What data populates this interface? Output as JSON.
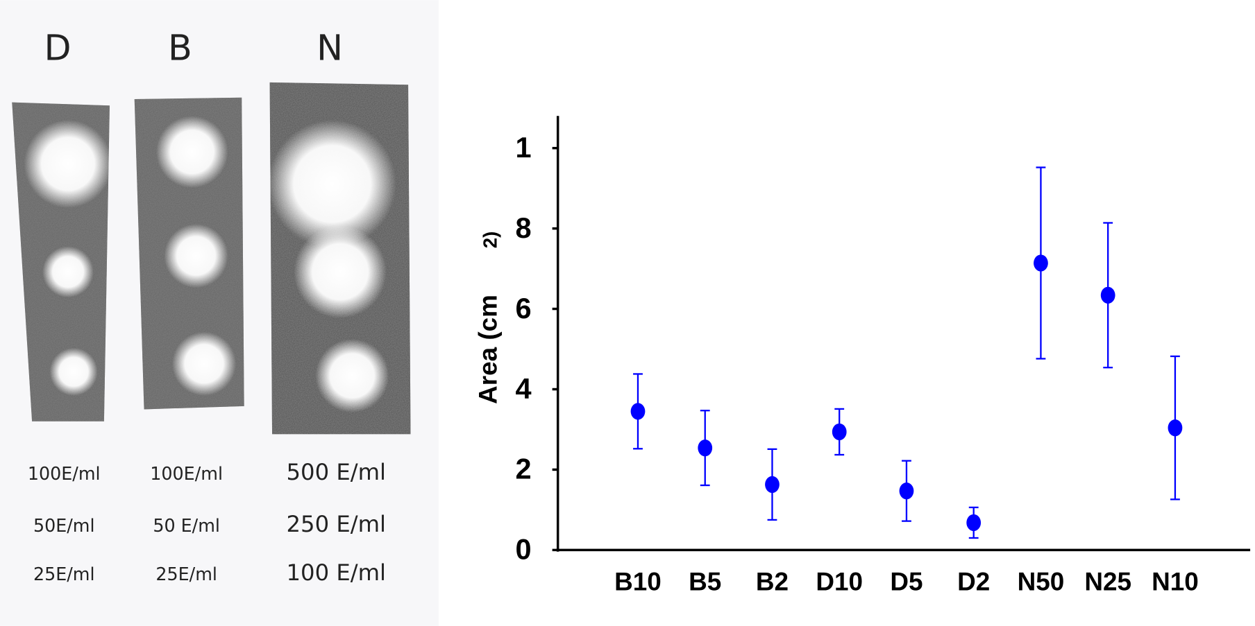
{
  "photo": {
    "columns": [
      {
        "title": "D",
        "labels": [
          "100E/ml",
          "50E/ml",
          "25E/ml"
        ]
      },
      {
        "title": "B",
        "labels": [
          "100E/ml",
          "50 E/ml",
          "25E/ml"
        ]
      },
      {
        "title": "N",
        "labels": [
          "500 E/ml",
          "250 E/ml",
          "100 E/ml"
        ]
      }
    ]
  },
  "chart_data": {
    "type": "scatter",
    "y_label": "Area (cm",
    "y_label_sup": "2)",
    "categories": [
      "B10",
      "B5",
      "B2",
      "D10",
      "D5",
      "D2",
      "N50",
      "N25",
      "N10"
    ],
    "values": [
      3.45,
      2.54,
      1.63,
      2.94,
      1.47,
      0.68,
      7.14,
      6.34,
      3.04
    ],
    "errors": [
      0.93,
      0.93,
      0.88,
      0.57,
      0.75,
      0.38,
      2.38,
      1.8,
      1.78
    ],
    "color": "#0000ff",
    "ylim": [
      0,
      10.8
    ],
    "yticks": [
      0,
      2,
      4,
      6,
      8,
      {
        "value": 10,
        "label": "1"
      }
    ]
  }
}
